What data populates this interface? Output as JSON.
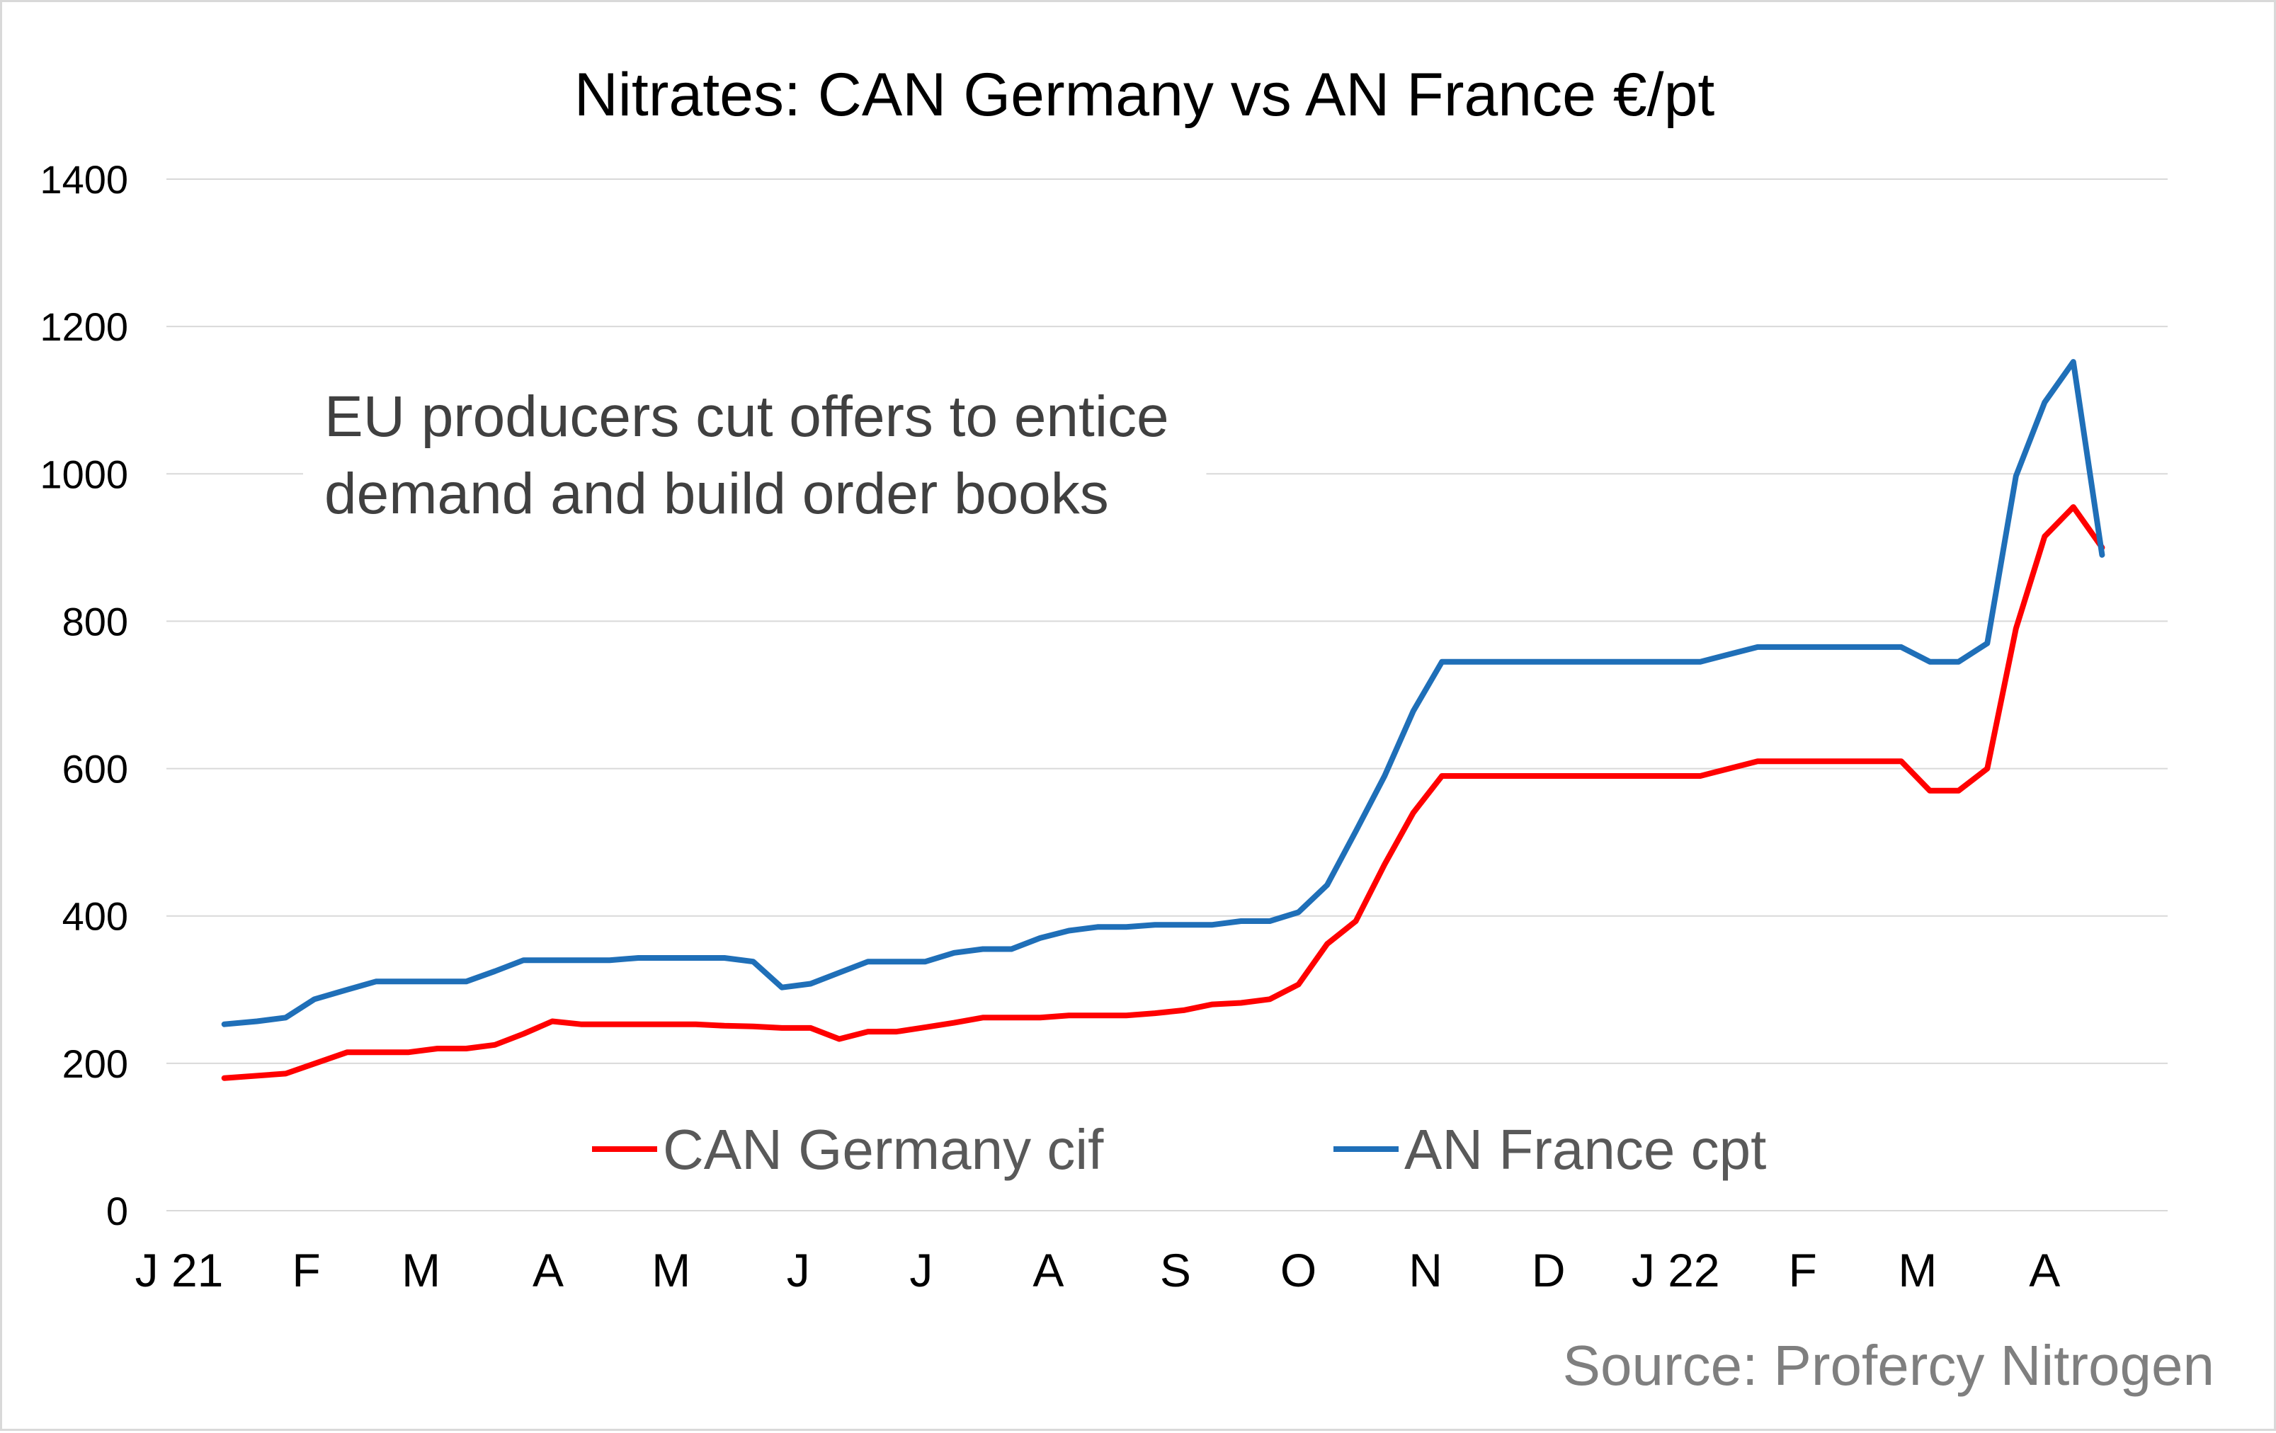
{
  "chart_data": {
    "type": "line",
    "title": "Nitrates: CAN Germany vs AN France €/pt",
    "annotation": [
      "EU producers cut offers to entice",
      "demand and build order books"
    ],
    "source": "Source: Profercy Nitrogen",
    "xlabel": "",
    "ylabel": "",
    "ylim": [
      0,
      1400
    ],
    "yticks": [
      0,
      200,
      400,
      600,
      800,
      1000,
      1200,
      1400
    ],
    "grid": true,
    "legend_position": "bottom-center",
    "xlim": [
      "2021-01-01",
      "2022-05-01"
    ],
    "xtick_labels": [
      {
        "label": "J 21",
        "date": "2021-01-01"
      },
      {
        "label": "F",
        "date": "2021-02-01"
      },
      {
        "label": "M",
        "date": "2021-03-01"
      },
      {
        "label": "A",
        "date": "2021-04-01"
      },
      {
        "label": "M",
        "date": "2021-05-01"
      },
      {
        "label": "J",
        "date": "2021-06-01"
      },
      {
        "label": "J",
        "date": "2021-07-01"
      },
      {
        "label": "A",
        "date": "2021-08-01"
      },
      {
        "label": "S",
        "date": "2021-09-01"
      },
      {
        "label": "O",
        "date": "2021-10-01"
      },
      {
        "label": "N",
        "date": "2021-11-01"
      },
      {
        "label": "D",
        "date": "2021-12-01"
      },
      {
        "label": "J 22",
        "date": "2022-01-01"
      },
      {
        "label": "F",
        "date": "2022-02-01"
      },
      {
        "label": "M",
        "date": "2022-03-01"
      },
      {
        "label": "A",
        "date": "2022-04-01"
      }
    ],
    "series": [
      {
        "name": "CAN Germany cif",
        "color": "#ff0000",
        "points": [
          [
            "2021-01-12",
            180
          ],
          [
            "2021-01-27",
            186
          ],
          [
            "2021-02-11",
            215
          ],
          [
            "2021-02-26",
            215
          ],
          [
            "2021-03-05",
            220
          ],
          [
            "2021-03-12",
            220
          ],
          [
            "2021-03-19",
            225
          ],
          [
            "2021-03-26",
            240
          ],
          [
            "2021-04-02",
            257
          ],
          [
            "2021-04-09",
            253
          ],
          [
            "2021-04-16",
            253
          ],
          [
            "2021-04-23",
            253
          ],
          [
            "2021-04-30",
            253
          ],
          [
            "2021-05-07",
            253
          ],
          [
            "2021-05-14",
            251
          ],
          [
            "2021-05-21",
            250
          ],
          [
            "2021-05-28",
            248
          ],
          [
            "2021-06-04",
            248
          ],
          [
            "2021-06-11",
            233
          ],
          [
            "2021-06-18",
            243
          ],
          [
            "2021-06-25",
            243
          ],
          [
            "2021-07-02",
            249
          ],
          [
            "2021-07-09",
            255
          ],
          [
            "2021-07-16",
            262
          ],
          [
            "2021-07-23",
            262
          ],
          [
            "2021-07-30",
            262
          ],
          [
            "2021-08-06",
            265
          ],
          [
            "2021-08-13",
            265
          ],
          [
            "2021-08-20",
            265
          ],
          [
            "2021-08-27",
            268
          ],
          [
            "2021-09-03",
            272
          ],
          [
            "2021-09-10",
            280
          ],
          [
            "2021-09-17",
            282
          ],
          [
            "2021-09-24",
            287
          ],
          [
            "2021-10-01",
            307
          ],
          [
            "2021-10-08",
            362
          ],
          [
            "2021-10-15",
            393
          ],
          [
            "2021-10-22",
            470
          ],
          [
            "2021-10-29",
            540
          ],
          [
            "2021-11-05",
            590
          ],
          [
            "2021-11-12",
            590
          ],
          [
            "2021-11-19",
            590
          ],
          [
            "2021-11-26",
            590
          ],
          [
            "2021-12-03",
            590
          ],
          [
            "2021-12-10",
            590
          ],
          [
            "2021-12-17",
            590
          ],
          [
            "2021-12-24",
            590
          ],
          [
            "2021-12-31",
            590
          ],
          [
            "2022-01-07",
            590
          ],
          [
            "2022-01-14",
            600
          ],
          [
            "2022-01-21",
            610
          ],
          [
            "2022-01-28",
            610
          ],
          [
            "2022-02-04",
            610
          ],
          [
            "2022-02-11",
            610
          ],
          [
            "2022-02-18",
            610
          ],
          [
            "2022-02-25",
            610
          ],
          [
            "2022-03-04",
            570
          ],
          [
            "2022-03-11",
            570
          ],
          [
            "2022-03-18",
            600
          ],
          [
            "2022-03-25",
            790
          ],
          [
            "2022-04-01",
            915
          ],
          [
            "2022-04-08",
            955
          ],
          [
            "2022-04-15",
            900
          ]
        ]
      },
      {
        "name": "AN France cpt",
        "color": "#1f6fb8",
        "points": [
          [
            "2021-01-12",
            253
          ],
          [
            "2021-01-20",
            257
          ],
          [
            "2021-01-27",
            262
          ],
          [
            "2021-02-03",
            287
          ],
          [
            "2021-02-11",
            300
          ],
          [
            "2021-02-18",
            311
          ],
          [
            "2021-02-26",
            311
          ],
          [
            "2021-03-05",
            311
          ],
          [
            "2021-03-12",
            311
          ],
          [
            "2021-03-19",
            325
          ],
          [
            "2021-03-26",
            340
          ],
          [
            "2021-04-02",
            340
          ],
          [
            "2021-04-09",
            340
          ],
          [
            "2021-04-16",
            340
          ],
          [
            "2021-04-23",
            343
          ],
          [
            "2021-04-30",
            343
          ],
          [
            "2021-05-07",
            343
          ],
          [
            "2021-05-14",
            343
          ],
          [
            "2021-05-21",
            338
          ],
          [
            "2021-05-28",
            303
          ],
          [
            "2021-06-04",
            308
          ],
          [
            "2021-06-11",
            323
          ],
          [
            "2021-06-18",
            338
          ],
          [
            "2021-06-25",
            338
          ],
          [
            "2021-07-02",
            338
          ],
          [
            "2021-07-09",
            350
          ],
          [
            "2021-07-16",
            355
          ],
          [
            "2021-07-23",
            355
          ],
          [
            "2021-07-30",
            370
          ],
          [
            "2021-08-06",
            380
          ],
          [
            "2021-08-13",
            385
          ],
          [
            "2021-08-20",
            385
          ],
          [
            "2021-08-27",
            388
          ],
          [
            "2021-09-03",
            388
          ],
          [
            "2021-09-10",
            388
          ],
          [
            "2021-09-17",
            393
          ],
          [
            "2021-09-24",
            393
          ],
          [
            "2021-10-01",
            405
          ],
          [
            "2021-10-08",
            442
          ],
          [
            "2021-10-15",
            515
          ],
          [
            "2021-10-22",
            590
          ],
          [
            "2021-10-29",
            678
          ],
          [
            "2021-11-05",
            745
          ],
          [
            "2021-11-12",
            745
          ],
          [
            "2021-11-19",
            745
          ],
          [
            "2021-11-26",
            745
          ],
          [
            "2021-12-03",
            745
          ],
          [
            "2021-12-10",
            745
          ],
          [
            "2021-12-17",
            745
          ],
          [
            "2021-12-24",
            745
          ],
          [
            "2021-12-31",
            745
          ],
          [
            "2022-01-07",
            745
          ],
          [
            "2022-01-14",
            755
          ],
          [
            "2022-01-21",
            765
          ],
          [
            "2022-01-28",
            765
          ],
          [
            "2022-02-04",
            765
          ],
          [
            "2022-02-11",
            765
          ],
          [
            "2022-02-18",
            765
          ],
          [
            "2022-02-25",
            765
          ],
          [
            "2022-03-04",
            745
          ],
          [
            "2022-03-11",
            745
          ],
          [
            "2022-03-18",
            770
          ],
          [
            "2022-03-25",
            997
          ],
          [
            "2022-04-01",
            1097
          ],
          [
            "2022-04-08",
            1152
          ],
          [
            "2022-04-15",
            890
          ]
        ]
      }
    ]
  }
}
